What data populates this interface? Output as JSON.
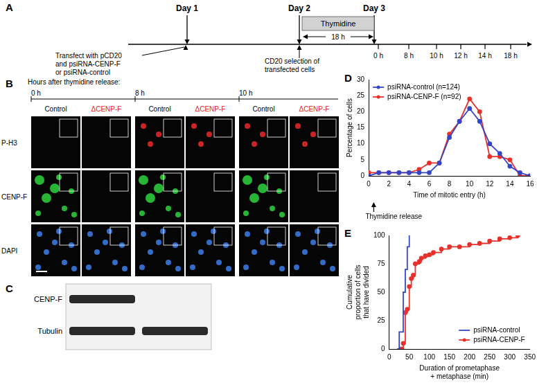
{
  "panel_labels": [
    "A",
    "B",
    "C",
    "D",
    "E"
  ],
  "timeline": {
    "days": [
      "Day 1",
      "Day 2",
      "Day 3"
    ],
    "treatment": "Thymidine",
    "duration": "18 h",
    "steps": [
      [
        "Transfect with pCD20",
        "and psiRNA-CENP-F",
        "or psiRNA-control"
      ],
      [
        "CD20 selection of",
        "transfected cells"
      ]
    ],
    "times": [
      "0 h",
      "8 h",
      "10 h",
      "12 h",
      "14 h",
      "18 h"
    ]
  },
  "micrographs": {
    "caption": "Hours after thymidine release:",
    "times": [
      "0 h",
      "8 h",
      "10 h"
    ],
    "conditions": [
      {
        "label": "Control",
        "color": "#000000"
      },
      {
        "label": "ΔCENP-F",
        "color": "#e8222a"
      }
    ],
    "stains": [
      {
        "label": "P-H3",
        "color": "#e02828"
      },
      {
        "label": "CENP-F",
        "color": "#2cc83a"
      },
      {
        "label": "DAPI",
        "color": "#3a78e0"
      }
    ]
  },
  "blot": {
    "bands": [
      "CENP-F",
      "Tubulin"
    ]
  },
  "chart_data": [
    {
      "type": "line",
      "x": [
        0,
        1,
        2,
        3,
        4,
        5,
        6,
        7,
        8,
        9,
        10,
        11,
        12,
        13,
        14,
        15,
        16
      ],
      "series": [
        {
          "name": "psiRNA-control (n=124)",
          "color": "#3446c8",
          "marker": "circle",
          "values": [
            0,
            1,
            1,
            1,
            1,
            1,
            1,
            4,
            12,
            17,
            21,
            17,
            10,
            7,
            3,
            1,
            0
          ]
        },
        {
          "name": "psiRNA-CENP-F (n=92)",
          "color": "#e8302a",
          "marker": "circle",
          "values": [
            1,
            1,
            1,
            1,
            1,
            2,
            4,
            4,
            13,
            17,
            24,
            20,
            6,
            6,
            5,
            0,
            0
          ]
        }
      ],
      "xlabel": "Time of mitotic entry (h)",
      "ylabel": "Percentage of cells",
      "xlim": [
        0,
        16
      ],
      "xticks": [
        0,
        2,
        4,
        6,
        8,
        10,
        12,
        14,
        16
      ],
      "ylim": [
        0,
        30
      ],
      "yticks": [
        0,
        5,
        10,
        15,
        20,
        25,
        30
      ],
      "grid": false,
      "legend": "upper left",
      "annotations": [
        {
          "text": "Thymidine release",
          "x": 0.5
        }
      ]
    },
    {
      "type": "line",
      "series": [
        {
          "name": "psiRNA-control",
          "color": "#3446c8",
          "marker": "none",
          "line_style": "stepped",
          "x": [
            20,
            25,
            35,
            40,
            45,
            50
          ],
          "values": [
            0,
            15,
            50,
            70,
            90,
            100
          ]
        },
        {
          "name": "psiRNA-CENP-F",
          "color": "#e8302a",
          "marker": "circle",
          "line_style": "stepped",
          "x": [
            30,
            35,
            40,
            45,
            50,
            55,
            60,
            65,
            75,
            80,
            90,
            100,
            110,
            130,
            150,
            175,
            200,
            225,
            250,
            275,
            300,
            320
          ],
          "values": [
            0,
            5,
            32,
            35,
            55,
            62,
            65,
            75,
            77,
            80,
            82,
            83,
            85,
            88,
            90,
            90,
            92,
            93,
            95,
            97,
            98,
            100
          ]
        }
      ],
      "xlabel": [
        "Duration of prometaphase",
        "+ metaphase (min)"
      ],
      "ylabel": [
        "Cumulative",
        "proportion of cells",
        "that have divided"
      ],
      "xlim": [
        0,
        350
      ],
      "xticks": [
        0,
        50,
        100,
        150,
        200,
        250,
        300,
        350
      ],
      "ylim": [
        0,
        100
      ],
      "yticks": [
        0,
        25,
        50,
        75,
        100
      ],
      "grid": false,
      "legend": "lower right"
    }
  ]
}
